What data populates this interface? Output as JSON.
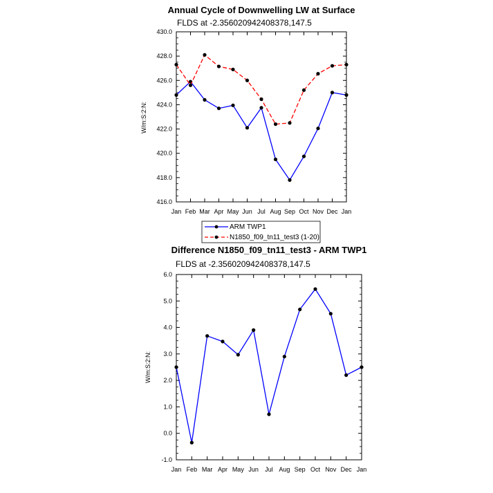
{
  "chart_data": [
    {
      "type": "line",
      "title": "Annual Cycle of Downwelling LW at Surface",
      "subtitle": "FLDS at -2.356020942408378,147.5",
      "ylabel": "W/m:S:2:N:",
      "xlabel": "",
      "categories": [
        "Jan",
        "Feb",
        "Mar",
        "Apr",
        "May",
        "Jun",
        "Jul",
        "Aug",
        "Sep",
        "Oct",
        "Nov",
        "Dec",
        "Jan"
      ],
      "ylim": [
        416.0,
        430.0
      ],
      "yticks": [
        "416.0",
        "418.0",
        "420.0",
        "422.0",
        "424.0",
        "426.0",
        "428.0",
        "430.0"
      ],
      "ytick_values": [
        416,
        418,
        420,
        422,
        424,
        426,
        428,
        430
      ],
      "series": [
        {
          "name": "ARM TWP1",
          "color": "#0000ff",
          "dash": "solid",
          "values": [
            424.8,
            425.9,
            424.4,
            423.7,
            423.95,
            422.1,
            423.75,
            419.5,
            417.8,
            419.75,
            422.05,
            425.0,
            424.8
          ]
        },
        {
          "name": "N1850_f09_tn11_test3 (1-20)",
          "color": "#ff0000",
          "dash": "dashed",
          "values": [
            427.3,
            425.6,
            428.1,
            427.15,
            426.9,
            426.0,
            424.45,
            422.4,
            422.5,
            425.2,
            426.55,
            427.2,
            427.3
          ]
        }
      ],
      "legend": [
        "ARM TWP1",
        "N1850_f09_tn11_test3 (1-20)"
      ]
    },
    {
      "type": "line",
      "title": "Difference N1850_f09_tn11_test3 - ARM TWP1",
      "subtitle": "FLDS at -2.356020942408378,147.5",
      "ylabel": "W/m:S:2:N:",
      "xlabel": "",
      "categories": [
        "Jan",
        "Feb",
        "Mar",
        "Apr",
        "May",
        "Jun",
        "Jul",
        "Aug",
        "Sep",
        "Oct",
        "Nov",
        "Dec",
        "Jan"
      ],
      "ylim": [
        -1.0,
        6.0
      ],
      "yticks": [
        "-1.0",
        "0.0",
        "1.0",
        "2.0",
        "3.0",
        "4.0",
        "5.0",
        "6.0"
      ],
      "ytick_values": [
        -1,
        0,
        1,
        2,
        3,
        4,
        5,
        6
      ],
      "series": [
        {
          "name": "",
          "color": "#0000ff",
          "dash": "solid",
          "values": [
            2.5,
            -0.35,
            3.68,
            3.47,
            2.97,
            3.9,
            0.72,
            2.9,
            4.68,
            5.45,
            4.52,
            2.2,
            2.5
          ]
        }
      ]
    }
  ]
}
